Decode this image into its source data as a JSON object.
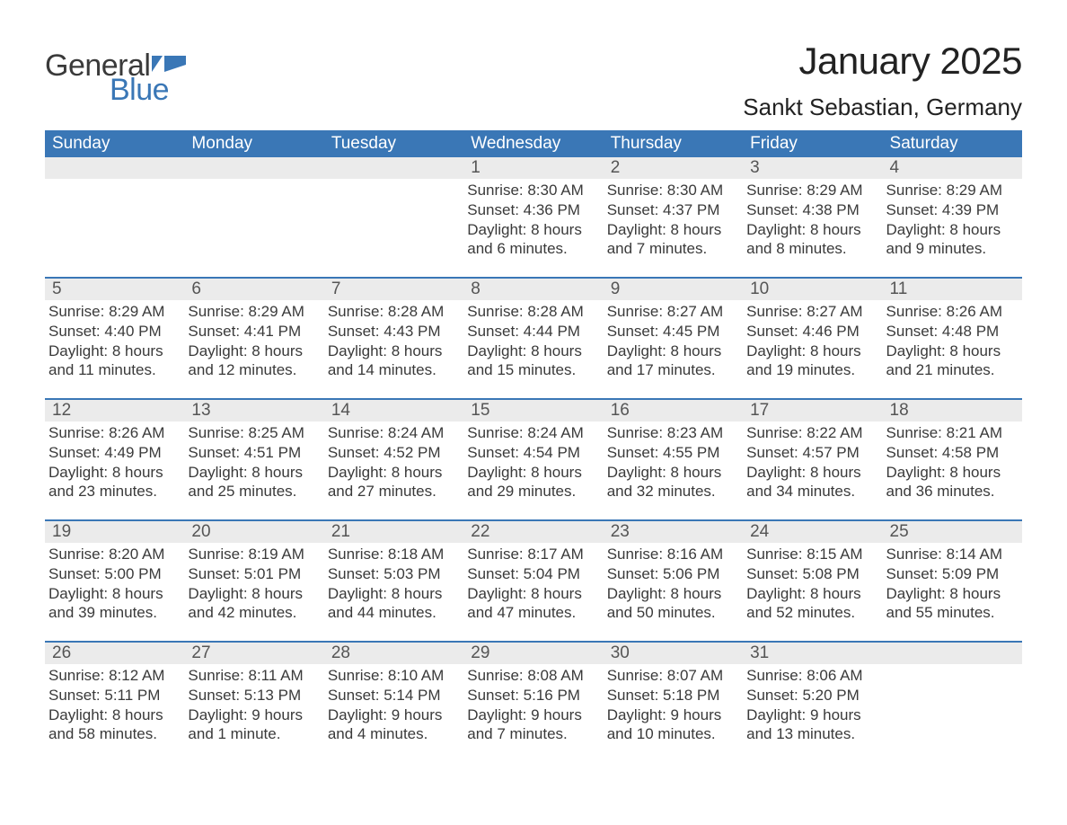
{
  "logo": {
    "text1": "General",
    "text2": "Blue",
    "flag_color": "#3a77b6"
  },
  "title": "January 2025",
  "location": "Sankt Sebastian, Germany",
  "colors": {
    "header_bg": "#3a77b6",
    "header_text": "#ffffff",
    "daynum_bg": "#ebebeb",
    "body_text": "#3a3a3a",
    "rule": "#3a77b6",
    "page_bg": "#ffffff"
  },
  "fonts": {
    "title_size_pt": 42,
    "location_size_pt": 26,
    "weekday_size_pt": 19,
    "daynum_size_pt": 19,
    "body_size_pt": 17,
    "family": "Arial"
  },
  "weekdays": [
    "Sunday",
    "Monday",
    "Tuesday",
    "Wednesday",
    "Thursday",
    "Friday",
    "Saturday"
  ],
  "weeks": [
    [
      null,
      null,
      null,
      {
        "n": "1",
        "sunrise": "Sunrise: 8:30 AM",
        "sunset": "Sunset: 4:36 PM",
        "daylight": "Daylight: 8 hours and 6 minutes."
      },
      {
        "n": "2",
        "sunrise": "Sunrise: 8:30 AM",
        "sunset": "Sunset: 4:37 PM",
        "daylight": "Daylight: 8 hours and 7 minutes."
      },
      {
        "n": "3",
        "sunrise": "Sunrise: 8:29 AM",
        "sunset": "Sunset: 4:38 PM",
        "daylight": "Daylight: 8 hours and 8 minutes."
      },
      {
        "n": "4",
        "sunrise": "Sunrise: 8:29 AM",
        "sunset": "Sunset: 4:39 PM",
        "daylight": "Daylight: 8 hours and 9 minutes."
      }
    ],
    [
      {
        "n": "5",
        "sunrise": "Sunrise: 8:29 AM",
        "sunset": "Sunset: 4:40 PM",
        "daylight": "Daylight: 8 hours and 11 minutes."
      },
      {
        "n": "6",
        "sunrise": "Sunrise: 8:29 AM",
        "sunset": "Sunset: 4:41 PM",
        "daylight": "Daylight: 8 hours and 12 minutes."
      },
      {
        "n": "7",
        "sunrise": "Sunrise: 8:28 AM",
        "sunset": "Sunset: 4:43 PM",
        "daylight": "Daylight: 8 hours and 14 minutes."
      },
      {
        "n": "8",
        "sunrise": "Sunrise: 8:28 AM",
        "sunset": "Sunset: 4:44 PM",
        "daylight": "Daylight: 8 hours and 15 minutes."
      },
      {
        "n": "9",
        "sunrise": "Sunrise: 8:27 AM",
        "sunset": "Sunset: 4:45 PM",
        "daylight": "Daylight: 8 hours and 17 minutes."
      },
      {
        "n": "10",
        "sunrise": "Sunrise: 8:27 AM",
        "sunset": "Sunset: 4:46 PM",
        "daylight": "Daylight: 8 hours and 19 minutes."
      },
      {
        "n": "11",
        "sunrise": "Sunrise: 8:26 AM",
        "sunset": "Sunset: 4:48 PM",
        "daylight": "Daylight: 8 hours and 21 minutes."
      }
    ],
    [
      {
        "n": "12",
        "sunrise": "Sunrise: 8:26 AM",
        "sunset": "Sunset: 4:49 PM",
        "daylight": "Daylight: 8 hours and 23 minutes."
      },
      {
        "n": "13",
        "sunrise": "Sunrise: 8:25 AM",
        "sunset": "Sunset: 4:51 PM",
        "daylight": "Daylight: 8 hours and 25 minutes."
      },
      {
        "n": "14",
        "sunrise": "Sunrise: 8:24 AM",
        "sunset": "Sunset: 4:52 PM",
        "daylight": "Daylight: 8 hours and 27 minutes."
      },
      {
        "n": "15",
        "sunrise": "Sunrise: 8:24 AM",
        "sunset": "Sunset: 4:54 PM",
        "daylight": "Daylight: 8 hours and 29 minutes."
      },
      {
        "n": "16",
        "sunrise": "Sunrise: 8:23 AM",
        "sunset": "Sunset: 4:55 PM",
        "daylight": "Daylight: 8 hours and 32 minutes."
      },
      {
        "n": "17",
        "sunrise": "Sunrise: 8:22 AM",
        "sunset": "Sunset: 4:57 PM",
        "daylight": "Daylight: 8 hours and 34 minutes."
      },
      {
        "n": "18",
        "sunrise": "Sunrise: 8:21 AM",
        "sunset": "Sunset: 4:58 PM",
        "daylight": "Daylight: 8 hours and 36 minutes."
      }
    ],
    [
      {
        "n": "19",
        "sunrise": "Sunrise: 8:20 AM",
        "sunset": "Sunset: 5:00 PM",
        "daylight": "Daylight: 8 hours and 39 minutes."
      },
      {
        "n": "20",
        "sunrise": "Sunrise: 8:19 AM",
        "sunset": "Sunset: 5:01 PM",
        "daylight": "Daylight: 8 hours and 42 minutes."
      },
      {
        "n": "21",
        "sunrise": "Sunrise: 8:18 AM",
        "sunset": "Sunset: 5:03 PM",
        "daylight": "Daylight: 8 hours and 44 minutes."
      },
      {
        "n": "22",
        "sunrise": "Sunrise: 8:17 AM",
        "sunset": "Sunset: 5:04 PM",
        "daylight": "Daylight: 8 hours and 47 minutes."
      },
      {
        "n": "23",
        "sunrise": "Sunrise: 8:16 AM",
        "sunset": "Sunset: 5:06 PM",
        "daylight": "Daylight: 8 hours and 50 minutes."
      },
      {
        "n": "24",
        "sunrise": "Sunrise: 8:15 AM",
        "sunset": "Sunset: 5:08 PM",
        "daylight": "Daylight: 8 hours and 52 minutes."
      },
      {
        "n": "25",
        "sunrise": "Sunrise: 8:14 AM",
        "sunset": "Sunset: 5:09 PM",
        "daylight": "Daylight: 8 hours and 55 minutes."
      }
    ],
    [
      {
        "n": "26",
        "sunrise": "Sunrise: 8:12 AM",
        "sunset": "Sunset: 5:11 PM",
        "daylight": "Daylight: 8 hours and 58 minutes."
      },
      {
        "n": "27",
        "sunrise": "Sunrise: 8:11 AM",
        "sunset": "Sunset: 5:13 PM",
        "daylight": "Daylight: 9 hours and 1 minute."
      },
      {
        "n": "28",
        "sunrise": "Sunrise: 8:10 AM",
        "sunset": "Sunset: 5:14 PM",
        "daylight": "Daylight: 9 hours and 4 minutes."
      },
      {
        "n": "29",
        "sunrise": "Sunrise: 8:08 AM",
        "sunset": "Sunset: 5:16 PM",
        "daylight": "Daylight: 9 hours and 7 minutes."
      },
      {
        "n": "30",
        "sunrise": "Sunrise: 8:07 AM",
        "sunset": "Sunset: 5:18 PM",
        "daylight": "Daylight: 9 hours and 10 minutes."
      },
      {
        "n": "31",
        "sunrise": "Sunrise: 8:06 AM",
        "sunset": "Sunset: 5:20 PM",
        "daylight": "Daylight: 9 hours and 13 minutes."
      },
      null
    ]
  ]
}
